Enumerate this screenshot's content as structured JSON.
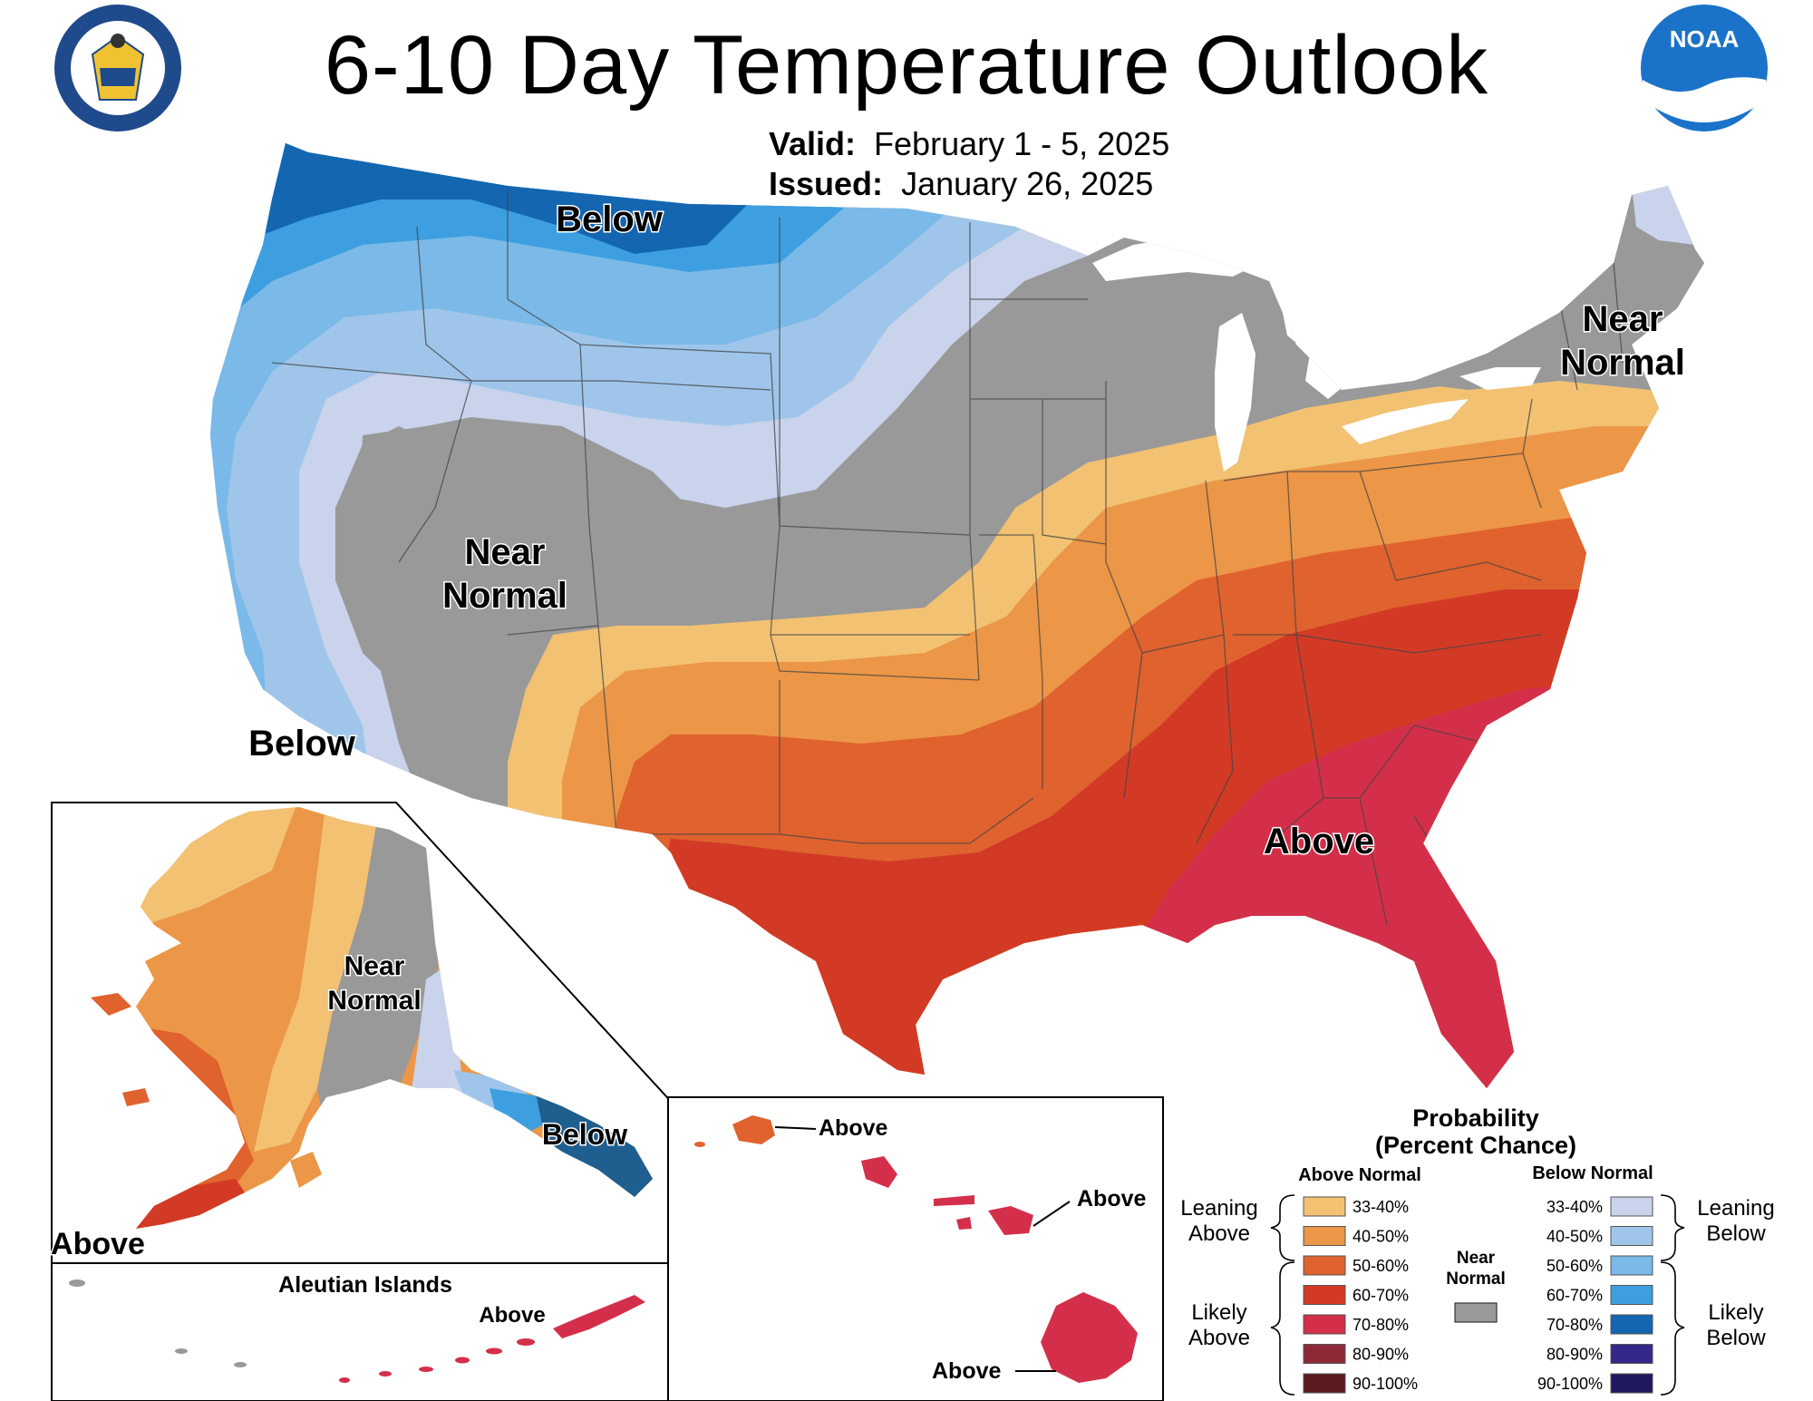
{
  "header": {
    "title": "6-10 Day Temperature Outlook",
    "valid_label": "Valid:",
    "valid_value": "February 1 - 5, 2025",
    "issued_label": "Issued:",
    "issued_value": "January 26, 2025"
  },
  "logos": {
    "commerce_seal": "department-of-commerce-seal",
    "noaa_text": "NOAA"
  },
  "regions": {
    "conus": {
      "below_nw": "Below",
      "below_sw": "Below",
      "near_normal_west_1": "Near",
      "near_normal_west_2": "Normal",
      "near_normal_ne_1": "Near",
      "near_normal_ne_2": "Normal",
      "above_se": "Above"
    },
    "alaska": {
      "near_normal_1": "Near",
      "near_normal_2": "Normal",
      "below": "Below",
      "above": "Above"
    },
    "aleutians": {
      "title": "Aleutian Islands",
      "above": "Above"
    },
    "hawaii": {
      "above_kauai": "Above",
      "above_maui": "Above",
      "above_big_island": "Above"
    }
  },
  "legend": {
    "title_1": "Probability",
    "title_2": "(Percent Chance)",
    "above_header": "Above Normal",
    "below_header": "Below Normal",
    "near_label_1": "Near",
    "near_label_2": "Normal",
    "leaning_above_1": "Leaning",
    "leaning_above_2": "Above",
    "likely_above_1": "Likely",
    "likely_above_2": "Above",
    "leaning_below_1": "Leaning",
    "leaning_below_2": "Below",
    "likely_below_1": "Likely",
    "likely_below_2": "Below",
    "above_bins": [
      {
        "label": "33-40%",
        "color": "#f2c172"
      },
      {
        "label": "40-50%",
        "color": "#ec9647"
      },
      {
        "label": "50-60%",
        "color": "#e0622e"
      },
      {
        "label": "60-70%",
        "color": "#d23a26"
      },
      {
        "label": "70-80%",
        "color": "#d42f4a"
      },
      {
        "label": "80-90%",
        "color": "#8e2a37"
      },
      {
        "label": "90-100%",
        "color": "#5a1a1f"
      }
    ],
    "below_bins": [
      {
        "label": "33-40%",
        "color": "#c9d3ec"
      },
      {
        "label": "40-50%",
        "color": "#9fc6ea"
      },
      {
        "label": "50-60%",
        "color": "#7ab9e8"
      },
      {
        "label": "60-70%",
        "color": "#3d9fe0"
      },
      {
        "label": "70-80%",
        "color": "#1466b0"
      },
      {
        "label": "80-90%",
        "color": "#332887"
      },
      {
        "label": "90-100%",
        "color": "#1f1a5e"
      }
    ],
    "near_color": "#999999"
  }
}
